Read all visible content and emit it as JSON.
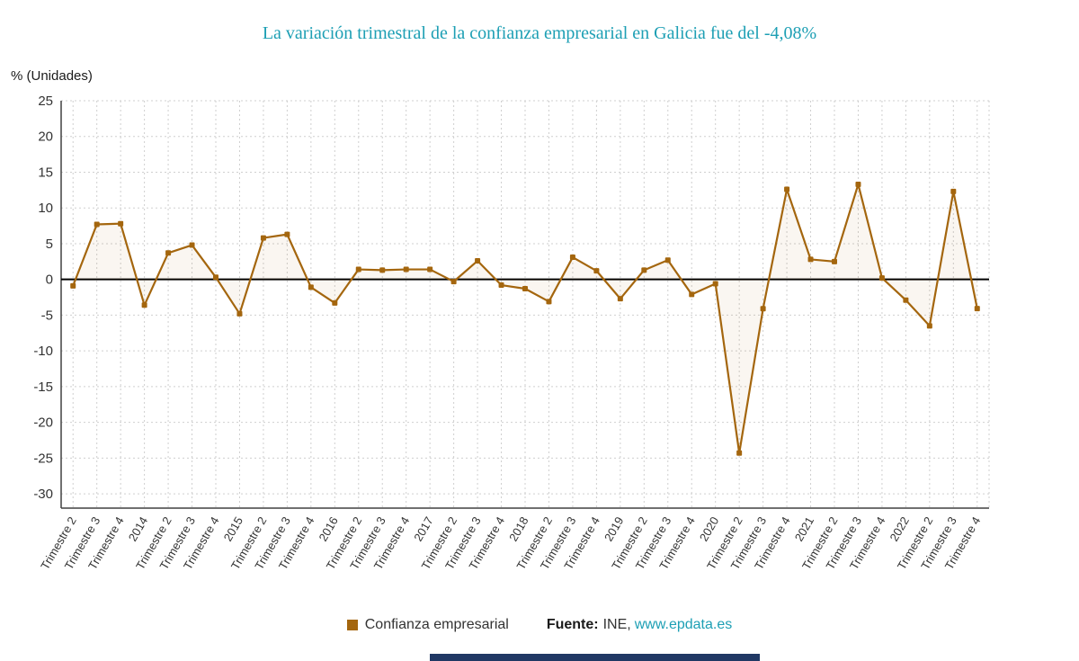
{
  "title": "La variación trimestral de la confianza empresarial en Galicia fue del -4,08%",
  "y_axis_unit_label": "% (Unidades)",
  "legend": {
    "series_label": "Confianza empresarial",
    "source_label": "Fuente:",
    "source_name": "INE,",
    "source_link": "www.epdata.es"
  },
  "colors": {
    "title": "#1d9fb4",
    "link": "#1d9fb4",
    "series": "#a4660e",
    "area_fill": "rgba(164,102,14,0.06)",
    "grid": "#cfcfcf",
    "axis": "#404040",
    "zero_line": "#000000",
    "tick_text": "#333333",
    "footer_bar": "#203864"
  },
  "chart_data": {
    "type": "line",
    "title": "La variación trimestral de la confianza empresarial en Galicia fue del -4,08%",
    "xlabel": "",
    "ylabel": "% (Unidades)",
    "ylim": [
      -32,
      25
    ],
    "yticks": [
      25,
      20,
      15,
      10,
      5,
      0,
      -5,
      -10,
      -15,
      -20,
      -25,
      -30
    ],
    "grid": true,
    "grid_style": "dotted",
    "legend_position": "bottom",
    "marker": "square",
    "categories": [
      "Trimestre 2",
      "Trimestre 3",
      "Trimestre 4",
      "2014",
      "Trimestre 2",
      "Trimestre 3",
      "Trimestre 4",
      "2015",
      "Trimestre 2",
      "Trimestre 3",
      "Trimestre 4",
      "2016",
      "Trimestre 2",
      "Trimestre 3",
      "Trimestre 4",
      "2017",
      "Trimestre 2",
      "Trimestre 3",
      "Trimestre 4",
      "2018",
      "Trimestre 2",
      "Trimestre 3",
      "Trimestre 4",
      "2019",
      "Trimestre 2",
      "Trimestre 3",
      "Trimestre 4",
      "2020",
      "Trimestre 2",
      "Trimestre 3",
      "Trimestre 4",
      "2021",
      "Trimestre 2",
      "Trimestre 3",
      "Trimestre 4",
      "2022",
      "Trimestre 2",
      "Trimestre 3",
      "Trimestre 4"
    ],
    "series": [
      {
        "name": "Confianza empresarial",
        "values": [
          -0.9,
          7.7,
          7.8,
          -3.6,
          3.7,
          4.8,
          0.3,
          -4.8,
          5.8,
          6.3,
          -1.1,
          -3.3,
          1.4,
          1.3,
          1.4,
          1.4,
          -0.3,
          2.6,
          -0.8,
          -1.3,
          -3.1,
          3.1,
          1.2,
          -2.7,
          1.3,
          2.7,
          -2.1,
          -0.6,
          -24.3,
          -4.1,
          12.6,
          2.8,
          2.5,
          13.3,
          0.2,
          -2.9,
          -6.5,
          12.3,
          -4.08
        ]
      }
    ]
  }
}
